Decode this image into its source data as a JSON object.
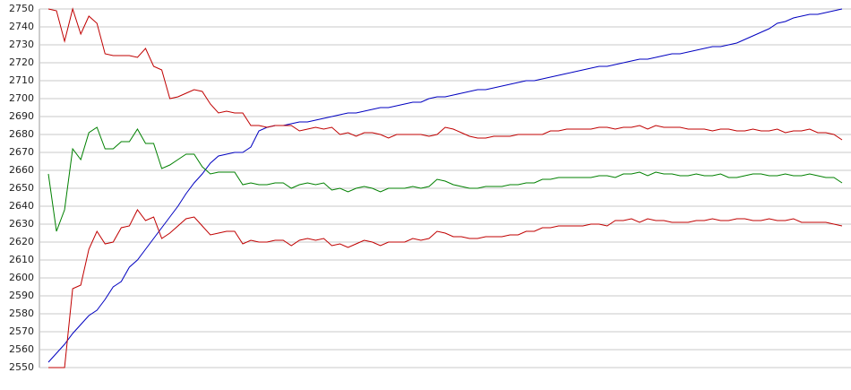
{
  "chart_data": {
    "type": "line",
    "ylim": [
      2550,
      2750
    ],
    "yticks": [
      2550,
      2560,
      2570,
      2580,
      2590,
      2600,
      2610,
      2620,
      2630,
      2640,
      2650,
      2660,
      2670,
      2680,
      2690,
      2700,
      2710,
      2720,
      2730,
      2740,
      2750
    ],
    "grid": true,
    "series": [
      {
        "color": "#0000c0",
        "values": [
          2553,
          2558,
          2563,
          2569,
          2574,
          2579,
          2582,
          2588,
          2595,
          2598,
          2606,
          2610,
          2616,
          2622,
          2628,
          2634,
          2640,
          2647,
          2653,
          2658,
          2664,
          2668,
          2669,
          2670,
          2670,
          2673,
          2682,
          2684,
          2685,
          2685,
          2686,
          2687,
          2687,
          2688,
          2689,
          2690,
          2691,
          2692,
          2692,
          2693,
          2694,
          2695,
          2695,
          2696,
          2697,
          2698,
          2698,
          2700,
          2701,
          2701,
          2702,
          2703,
          2704,
          2705,
          2705,
          2706,
          2707,
          2708,
          2709,
          2710,
          2710,
          2711,
          2712,
          2713,
          2714,
          2715,
          2716,
          2717,
          2718,
          2718,
          2719,
          2720,
          2721,
          2722,
          2722,
          2723,
          2724,
          2725,
          2725,
          2726,
          2727,
          2728,
          2729,
          2729,
          2730,
          2731,
          2733,
          2735,
          2737,
          2739,
          2742,
          2743,
          2745,
          2746,
          2747,
          2747,
          2748,
          2749,
          2750
        ]
      },
      {
        "color": "#c00000",
        "values": [
          2750,
          2749,
          2732,
          2750,
          2736,
          2746,
          2742,
          2725,
          2724,
          2724,
          2724,
          2723,
          2728,
          2718,
          2716,
          2700,
          2701,
          2703,
          2705,
          2704,
          2697,
          2692,
          2693,
          2692,
          2692,
          2685,
          2685,
          2684,
          2685,
          2685,
          2685,
          2682,
          2683,
          2684,
          2683,
          2684,
          2680,
          2681,
          2679,
          2681,
          2681,
          2680,
          2678,
          2680,
          2680,
          2680,
          2680,
          2679,
          2680,
          2684,
          2683,
          2681,
          2679,
          2678,
          2678,
          2679,
          2679,
          2679,
          2680,
          2680,
          2680,
          2680,
          2682,
          2682,
          2683,
          2683,
          2683,
          2683,
          2684,
          2684,
          2683,
          2684,
          2684,
          2685,
          2683,
          2685,
          2684,
          2684,
          2684,
          2683,
          2683,
          2683,
          2682,
          2683,
          2683,
          2682,
          2682,
          2683,
          2682,
          2682,
          2683,
          2681,
          2682,
          2682,
          2683,
          2681,
          2681,
          2680,
          2677
        ]
      },
      {
        "color": "#008000",
        "values": [
          2658,
          2626,
          2638,
          2672,
          2666,
          2681,
          2684,
          2672,
          2672,
          2676,
          2676,
          2683,
          2675,
          2675,
          2661,
          2663,
          2666,
          2669,
          2669,
          2662,
          2658,
          2659,
          2659,
          2659,
          2652,
          2653,
          2652,
          2652,
          2653,
          2653,
          2650,
          2652,
          2653,
          2652,
          2653,
          2649,
          2650,
          2648,
          2650,
          2651,
          2650,
          2648,
          2650,
          2650,
          2650,
          2651,
          2650,
          2651,
          2655,
          2654,
          2652,
          2651,
          2650,
          2650,
          2651,
          2651,
          2651,
          2652,
          2652,
          2653,
          2653,
          2655,
          2655,
          2656,
          2656,
          2656,
          2656,
          2656,
          2657,
          2657,
          2656,
          2658,
          2658,
          2659,
          2657,
          2659,
          2658,
          2658,
          2657,
          2657,
          2658,
          2657,
          2657,
          2658,
          2656,
          2656,
          2657,
          2658,
          2658,
          2657,
          2657,
          2658,
          2657,
          2657,
          2658,
          2657,
          2656,
          2656,
          2653
        ]
      },
      {
        "color": "#c00000",
        "values": [
          2550,
          2550,
          2550,
          2594,
          2596,
          2616,
          2626,
          2619,
          2620,
          2628,
          2629,
          2638,
          2632,
          2634,
          2622,
          2625,
          2629,
          2633,
          2634,
          2629,
          2624,
          2625,
          2626,
          2626,
          2619,
          2621,
          2620,
          2620,
          2621,
          2621,
          2618,
          2621,
          2622,
          2621,
          2622,
          2618,
          2619,
          2617,
          2619,
          2621,
          2620,
          2618,
          2620,
          2620,
          2620,
          2622,
          2621,
          2622,
          2626,
          2625,
          2623,
          2623,
          2622,
          2622,
          2623,
          2623,
          2623,
          2624,
          2624,
          2626,
          2626,
          2628,
          2628,
          2629,
          2629,
          2629,
          2629,
          2630,
          2630,
          2629,
          2632,
          2632,
          2633,
          2631,
          2633,
          2632,
          2632,
          2631,
          2631,
          2631,
          2632,
          2632,
          2633,
          2632,
          2632,
          2633,
          2633,
          2632,
          2632,
          2633,
          2632,
          2632,
          2633,
          2631,
          2631,
          2631,
          2631,
          2630,
          2629
        ]
      }
    ]
  }
}
